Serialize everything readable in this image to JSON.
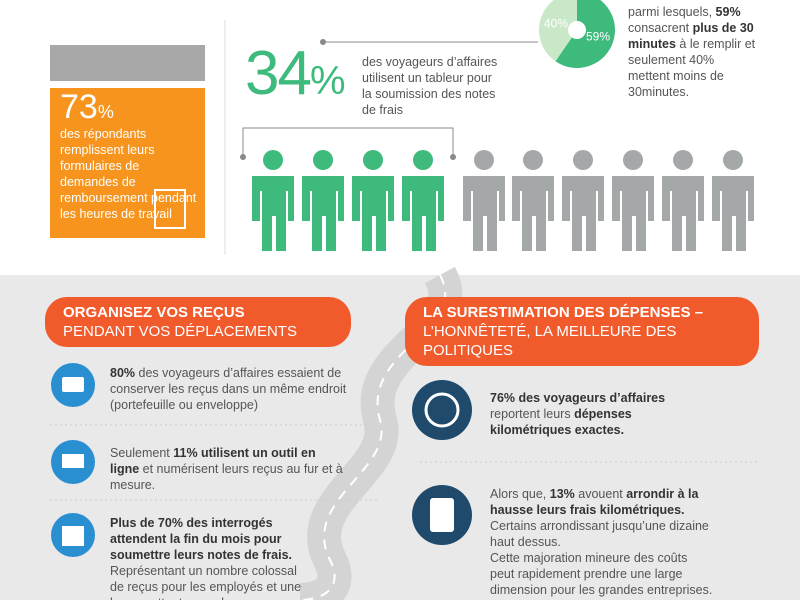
{
  "top": {
    "stat_73": {
      "number": "73",
      "unit": "%",
      "text": "des répondants remplissent leurs formulaires de demandes de remboursement pendant les heures de travail"
    },
    "stat_34": {
      "number": "34",
      "unit": "%",
      "text": "des voyageurs d’affaires utilisent un tableur pour la soumission des notes de frais"
    },
    "pie": {
      "values": [
        59,
        40
      ],
      "value_labels": [
        "59%",
        "40%"
      ],
      "colors": [
        "#3dba7c",
        "#c8e8c8"
      ]
    },
    "pie_text": [
      {
        "t": "parmi lesquels, ",
        "b": false
      },
      {
        "t": "59%",
        "b": true
      },
      {
        "t": " consacrent ",
        "b": false
      },
      {
        "t": "plus de 30 minutes",
        "b": true
      },
      {
        "t": " à le remplir et seulement 40% mettent moins de 30minutes.",
        "b": false
      }
    ]
  },
  "sections": [
    {
      "title_bold": "ORGANISEZ VOS REÇUS",
      "title": "PENDANT VOS DÉPLACEMENTS",
      "items": [
        [
          {
            "t": "80%",
            "b": true
          },
          {
            "t": " des voyageurs d’affaires essaient de conserver les reçus dans un même endroit (portefeuille ou enveloppe)",
            "b": false
          }
        ],
        [
          {
            "t": "Seulement ",
            "b": false
          },
          {
            "t": "11% utilisent un outil en ligne",
            "b": true
          },
          {
            "t": " et numérisent leurs reçus au fur et à mesure.",
            "b": false
          }
        ],
        [
          {
            "t": "Plus de 70% des interrogés attendent la fin du mois pour soumettre leurs notes de frais.",
            "b": true
          },
          {
            "t": " Représentant un nombre colossal de reçus pour les employés et une longue attente pour leurs remboursements.",
            "b": false
          }
        ]
      ]
    },
    {
      "title_bold": "LA SURESTIMATION DES DÉPENSES –",
      "title": "L’HONNÊTETÉ, LA MEILLEURE DES POLITIQUES",
      "items": [
        [
          {
            "t": "76% des voyageurs d’affaires",
            "b": true
          },
          {
            "t": " reportent leurs ",
            "b": false
          },
          {
            "t": "dépenses kilométriques exactes.",
            "b": true
          }
        ],
        [
          {
            "t": "Alors que, ",
            "b": false
          },
          {
            "t": "13%",
            "b": true
          },
          {
            "t": " avouent ",
            "b": false
          },
          {
            "t": "arrondir à la hausse leurs frais kilométriques.",
            "b": true
          },
          {
            "t": " Certains arrondissant jusqu’une dizaine haut dessus.",
            "b": false
          }
        ],
        [
          {
            "t": "Cette majoration mineure des coûts peut rapidement prendre une large dimension pour les grandes entreprises.",
            "b": false
          }
        ]
      ]
    }
  ]
}
